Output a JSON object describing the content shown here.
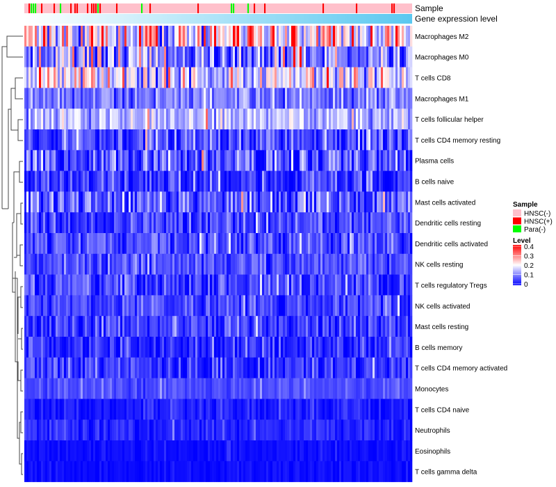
{
  "chart_data": {
    "type": "heatmap",
    "annotation_labels": [
      "Sample",
      "Gene expression level"
    ],
    "rows": [
      "Macrophages M2",
      "Macrophages M0",
      "T cells CD8",
      "Macrophages M1",
      "T cells follicular helper",
      "T cells CD4 memory resting",
      "Plasma cells",
      "B cells naive",
      "Mast cells activated",
      "Dendritic cells resting",
      "Dendritic cells activated",
      "NK cells resting",
      "T cells regulatory  Tregs",
      "NK cells activated",
      "Mast cells resting",
      "B cells memory",
      "T cells CD4 memory activated",
      "Monocytes",
      "T cells CD4 naive",
      "Neutrophils",
      "Eosinophils",
      "T cells gamma delta"
    ],
    "row_mean_level": [
      0.2,
      0.09,
      0.17,
      0.09,
      0.14,
      0.06,
      0.07,
      0.04,
      0.07,
      0.05,
      0.06,
      0.06,
      0.05,
      0.05,
      0.05,
      0.03,
      0.04,
      0.06,
      0.02,
      0.03,
      0.01,
      0.01
    ],
    "row_spread": [
      0.12,
      0.1,
      0.09,
      0.05,
      0.05,
      0.06,
      0.07,
      0.04,
      0.06,
      0.04,
      0.04,
      0.04,
      0.04,
      0.04,
      0.04,
      0.04,
      0.04,
      0.02,
      0.02,
      0.02,
      0.01,
      0.01
    ],
    "n_columns": 186,
    "color_scale": {
      "min": 0,
      "mid": 0.2,
      "max": 0.4,
      "colors": [
        "#0000ff",
        "#ffffff",
        "#ff0000"
      ]
    },
    "legend": {
      "sample_title": "Sample",
      "sample_entries": [
        {
          "label": "HNSC(-)",
          "color": "#ffc0cb"
        },
        {
          "label": "HNSC(+)",
          "color": "#ff0000"
        },
        {
          "label": "Para(-)",
          "color": "#00ff00"
        }
      ],
      "level_title": "Level",
      "level_ticks": [
        "0.4",
        "0.3",
        "0.2",
        "0.1",
        "0"
      ],
      "placement": "right"
    },
    "sample_fractions": {
      "HNSC(-)": 0.86,
      "HNSC(+)": 0.07,
      "Para(-)": 0.07
    }
  }
}
